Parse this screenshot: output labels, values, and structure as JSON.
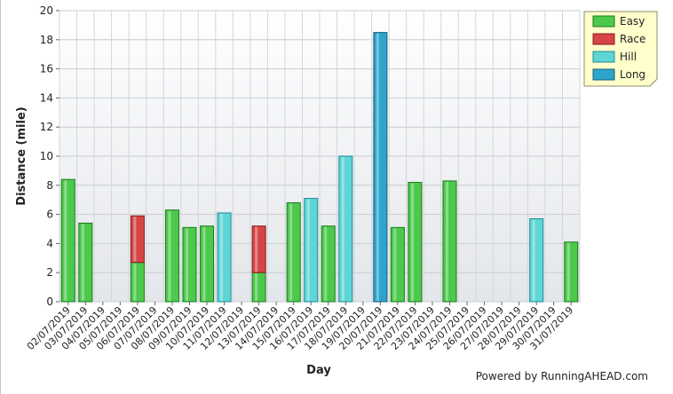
{
  "chart_data": {
    "type": "bar",
    "stacked": true,
    "xlabel": "Day",
    "ylabel": "Distance (mile)",
    "ylim": [
      0,
      20
    ],
    "yticks": [
      0,
      2,
      4,
      6,
      8,
      10,
      12,
      14,
      16,
      18,
      20
    ],
    "grid": true,
    "legend_position": "top-right",
    "categories": [
      "02/07/2019",
      "03/07/2019",
      "04/07/2019",
      "05/07/2019",
      "06/07/2019",
      "07/07/2019",
      "08/07/2019",
      "09/07/2019",
      "10/07/2019",
      "11/07/2019",
      "12/07/2019",
      "13/07/2019",
      "14/07/2019",
      "15/07/2019",
      "16/07/2019",
      "17/07/2019",
      "18/07/2019",
      "19/07/2019",
      "20/07/2019",
      "21/07/2019",
      "22/07/2019",
      "23/07/2019",
      "24/07/2019",
      "25/07/2019",
      "26/07/2019",
      "27/07/2019",
      "28/07/2019",
      "29/07/2019",
      "30/07/2019",
      "31/07/2019"
    ],
    "series": [
      {
        "name": "Easy",
        "color": "#4cc94c",
        "border": "#1d7a1d",
        "values": [
          8.4,
          5.4,
          0,
          0,
          2.7,
          0,
          6.3,
          5.1,
          5.2,
          0,
          0,
          2.0,
          0,
          6.8,
          0,
          5.2,
          0,
          0,
          0,
          5.1,
          8.2,
          0,
          8.3,
          0,
          0,
          0,
          0,
          0,
          0,
          4.1
        ]
      },
      {
        "name": "Race",
        "color": "#d64545",
        "border": "#8a1c1c",
        "values": [
          0,
          0,
          0,
          0,
          3.2,
          0,
          0,
          0,
          0,
          0,
          0,
          3.2,
          0,
          0,
          0,
          0,
          0,
          0,
          0,
          0,
          0,
          0,
          0,
          0,
          0,
          0,
          0,
          0,
          0,
          0
        ]
      },
      {
        "name": "Hill",
        "color": "#5fd6d6",
        "border": "#1f8b99",
        "values": [
          0,
          0,
          0,
          0,
          0,
          0,
          0,
          0,
          0,
          6.1,
          0,
          0,
          0,
          0,
          7.1,
          0,
          10.0,
          0,
          0,
          0,
          0,
          0,
          0,
          0,
          0,
          0,
          0,
          5.7,
          0,
          0
        ]
      },
      {
        "name": "Long",
        "color": "#2ea3cc",
        "border": "#16607a",
        "values": [
          0,
          0,
          0,
          0,
          0,
          0,
          0,
          0,
          0,
          0,
          0,
          0,
          0,
          0,
          0,
          0,
          0,
          0,
          18.5,
          0,
          0,
          0,
          0,
          0,
          0,
          0,
          0,
          0,
          0,
          0
        ]
      }
    ]
  },
  "credit": "Powered by RunningAHEAD.com"
}
